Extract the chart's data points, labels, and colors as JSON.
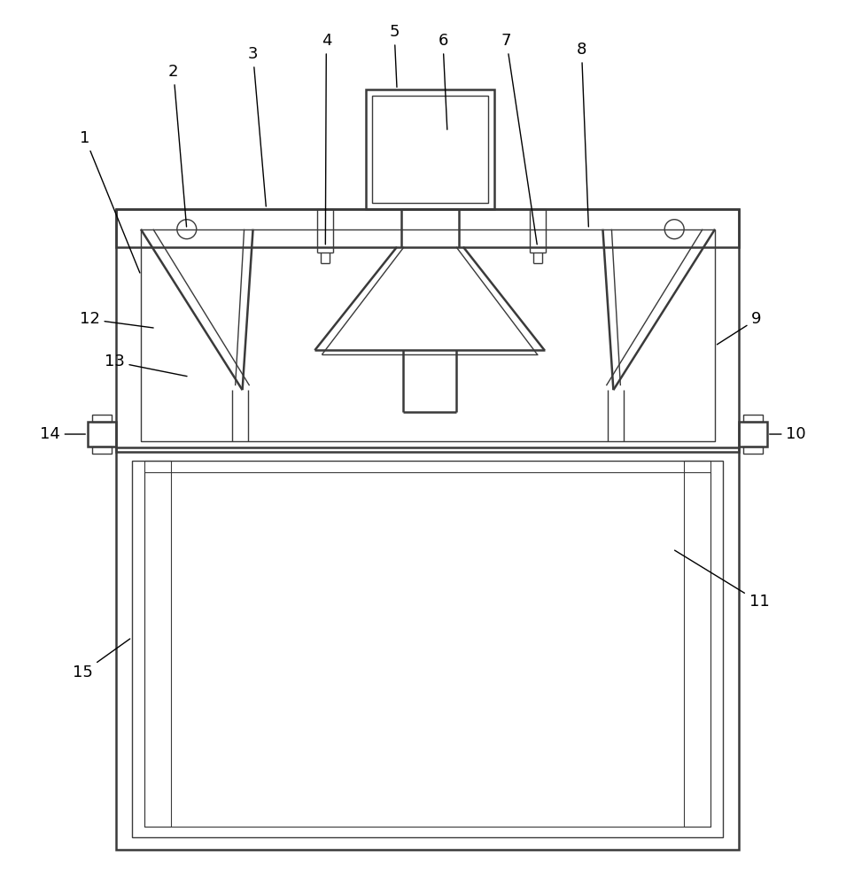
{
  "bg_color": "#ffffff",
  "line_color": "#3a3a3a",
  "lw_main": 1.8,
  "lw_thin": 1.0,
  "lw_inner": 0.8,
  "label_fontsize": 13,
  "label_color": "#000000",
  "fig_w": 9.64,
  "fig_h": 10.0,
  "dpi": 100
}
